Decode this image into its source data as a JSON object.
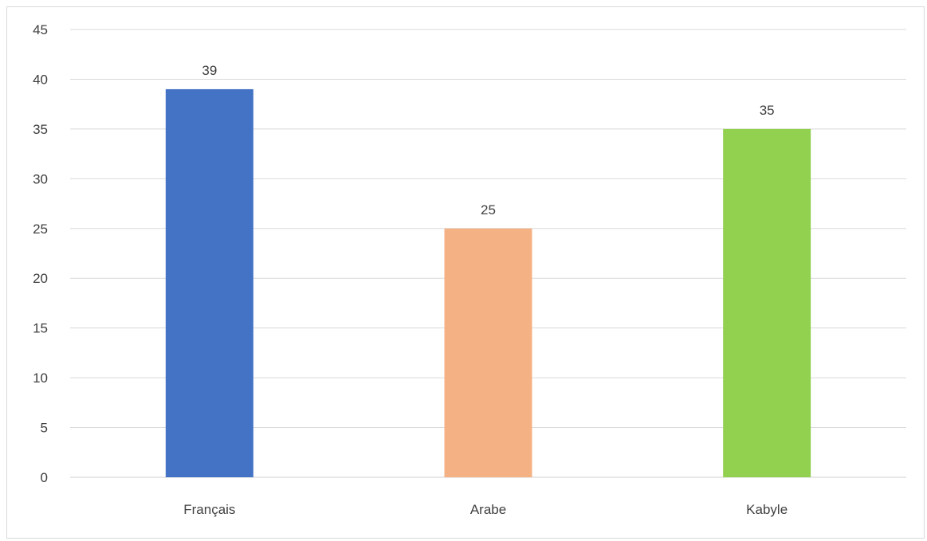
{
  "chart_data": {
    "type": "bar",
    "categories": [
      "Français",
      "Arabe",
      "Kabyle"
    ],
    "values": [
      39,
      25,
      35
    ],
    "colors": [
      "#4472c4",
      "#f4b183",
      "#92d050"
    ],
    "data_labels": [
      "39",
      "25",
      "35"
    ],
    "y_ticks": [
      "0",
      "5",
      "10",
      "15",
      "20",
      "25",
      "30",
      "35",
      "40",
      "45"
    ],
    "ylim": [
      0,
      45
    ],
    "y_step": 5,
    "grid": true,
    "legend": "none",
    "title": "",
    "xlabel": "",
    "ylabel": ""
  }
}
